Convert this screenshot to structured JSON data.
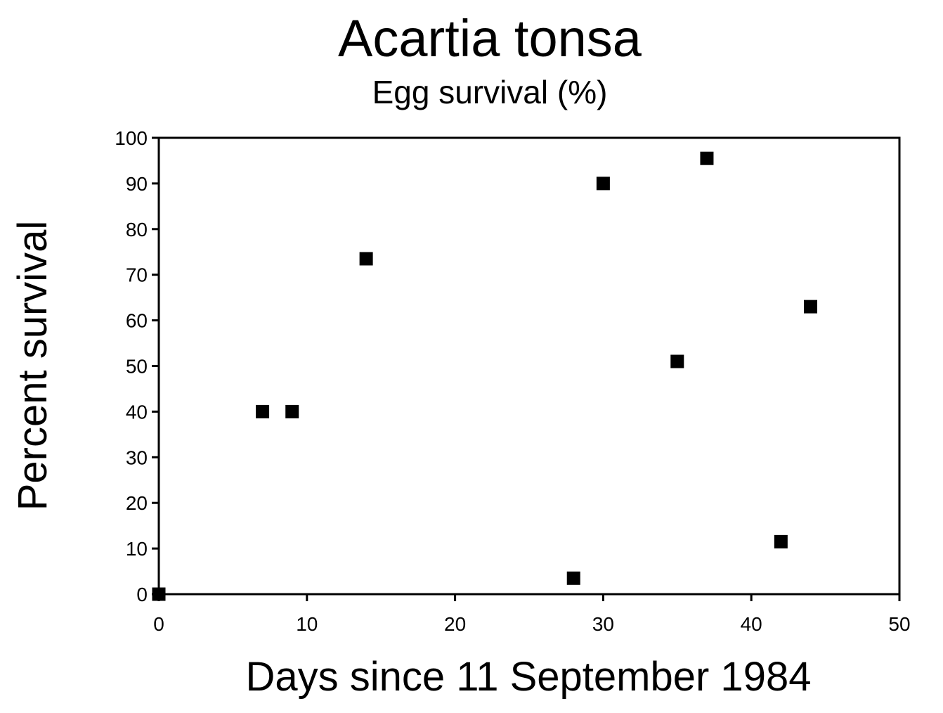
{
  "chart_data": {
    "type": "scatter",
    "title": "Acartia tonsa",
    "subtitle": "Egg survival (%)",
    "xlabel": "Days since 11 September 1984",
    "ylabel": "Percent survival",
    "xlim": [
      0,
      50
    ],
    "ylim": [
      0,
      100
    ],
    "xticks": [
      0,
      10,
      20,
      30,
      40,
      50
    ],
    "yticks": [
      0,
      10,
      20,
      30,
      40,
      50,
      60,
      70,
      80,
      90,
      100
    ],
    "grid": false,
    "legend": "none",
    "marker": "square",
    "marker_color": "#000000",
    "series": [
      {
        "points": [
          {
            "x": 0,
            "y": 0
          },
          {
            "x": 7,
            "y": 40
          },
          {
            "x": 9,
            "y": 40
          },
          {
            "x": 14,
            "y": 73.5
          },
          {
            "x": 28,
            "y": 3.5
          },
          {
            "x": 30,
            "y": 90
          },
          {
            "x": 35,
            "y": 51
          },
          {
            "x": 37,
            "y": 95.5
          },
          {
            "x": 42,
            "y": 11.5
          },
          {
            "x": 44,
            "y": 63
          }
        ]
      }
    ]
  }
}
